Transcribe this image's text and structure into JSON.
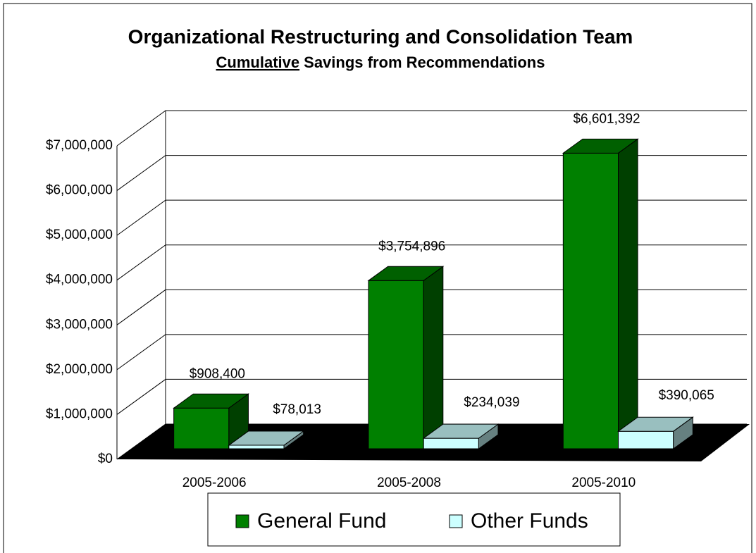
{
  "chart_data": {
    "type": "bar3d",
    "title": "Organizational Restructuring and Consolidation Team",
    "subtitle": [
      "Cumulative",
      "Savings from Recommendations"
    ],
    "categories": [
      "2005-2006",
      "2005-2008",
      "2005-2010"
    ],
    "series": [
      {
        "name": "General Fund",
        "color": "#008000",
        "values": [
          908400,
          3754896,
          6601392
        ],
        "value_labels": [
          "$908,400",
          "$3,754,896",
          "$6,601,392"
        ]
      },
      {
        "name": "Other Funds",
        "color": "#ccffff",
        "values": [
          78013,
          234039,
          390065
        ],
        "value_labels": [
          "$78,013",
          "$234,039",
          "$390,065"
        ]
      }
    ],
    "ylim": [
      0,
      7000000
    ],
    "yticks": [
      {
        "value": 0,
        "label": "$0"
      },
      {
        "value": 1000000,
        "label": "$1,000,000"
      },
      {
        "value": 2000000,
        "label": "$2,000,000"
      },
      {
        "value": 3000000,
        "label": "$3,000,000"
      },
      {
        "value": 4000000,
        "label": "$4,000,000"
      },
      {
        "value": 5000000,
        "label": "$5,000,000"
      },
      {
        "value": 6000000,
        "label": "$6,000,000"
      },
      {
        "value": 7000000,
        "label": "$7,000,000"
      }
    ],
    "grid": true,
    "legend": "bottom"
  }
}
